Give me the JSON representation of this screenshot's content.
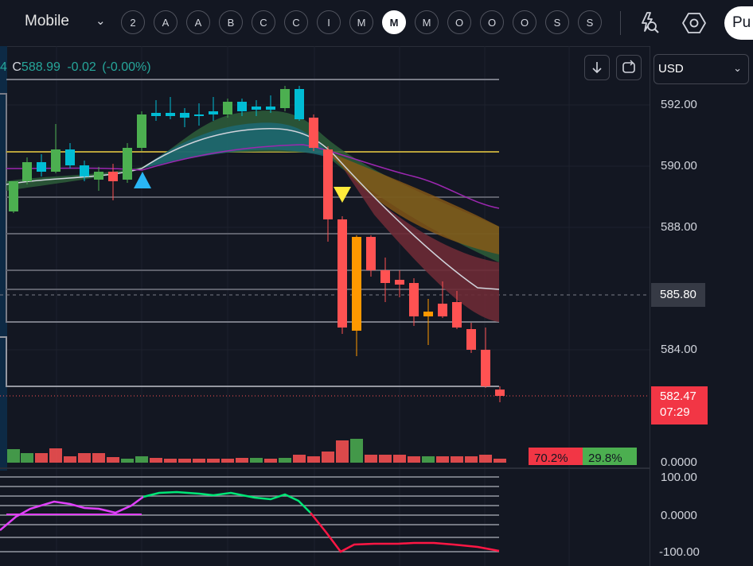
{
  "topbar": {
    "title": "Mobile",
    "dropdown_icon": "chevron-down-icon",
    "intervals": [
      "2",
      "A",
      "A",
      "B",
      "C",
      "C",
      "I",
      "M",
      "M",
      "M",
      "O",
      "O",
      "O",
      "S",
      "S"
    ],
    "active_index": 8,
    "right_icons": [
      "lightning-search-icon",
      "hexagon-settings-icon"
    ],
    "button_label": "Pu"
  },
  "legend": {
    "prefix": "4",
    "close_label": "C",
    "close_value": "588.99",
    "change": "-0.02",
    "change_pct": "(-0.00%)"
  },
  "controls": {
    "currency": "USD",
    "buttons": [
      "arrow-down-icon",
      "loop-icon"
    ]
  },
  "price_axis": {
    "labels": [
      "592.00",
      "590.00",
      "588.00",
      "584.00"
    ],
    "crosshair_price": "585.80",
    "last_price": "582.47",
    "countdown": "07:29"
  },
  "volume": {
    "sell_pct": "70.2%",
    "buy_pct": "29.8%",
    "axis_label": "0.0000"
  },
  "oscillator": {
    "labels": [
      "100.00",
      "0.0000",
      "-100.00"
    ]
  },
  "colors": {
    "background": "#131722",
    "up": "#4caf50",
    "down": "#ff5252",
    "cyan": "#00bcd4",
    "orange": "#ff9800",
    "yellow": "#fbc02d",
    "magenta": "#e040fb"
  }
}
